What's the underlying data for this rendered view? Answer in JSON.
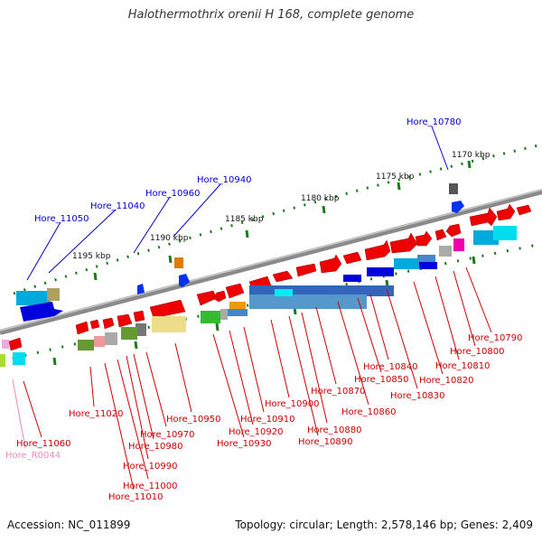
{
  "title": "Halothermothrix orenii H 168, complete genome",
  "accession": "Accession: NC_011899",
  "summary": "Topology: circular; Length: 2,578,146 bp; Genes: 2,409",
  "colors": {
    "backbone": "#8a8a8a",
    "tick_green": "#1c7a1c",
    "label_blue": "#0000cc",
    "label_red": "#cc0000",
    "label_pink": "#ee88bb"
  },
  "scale_labels": [
    "1170 kbp",
    "1175 kbp",
    "1180 kbp",
    "1185 kbp",
    "1190 kbp",
    "1195 kbp"
  ],
  "labels_top": [
    "Hore_10780",
    "Hore_10940",
    "Hore_10960",
    "Hore_11040",
    "Hore_11050"
  ],
  "labels_bottom": [
    "Hore_10790",
    "Hore_10800",
    "Hore_10810",
    "Hore_10820",
    "Hore_10830",
    "Hore_10840",
    "Hore_10850",
    "Hore_10860",
    "Hore_10870",
    "Hore_10880",
    "Hore_10890",
    "Hore_10900",
    "Hore_10910",
    "Hore_10920",
    "Hore_10930",
    "Hore_10950",
    "Hore_10970",
    "Hore_10980",
    "Hore_10990",
    "Hore_11000",
    "Hore_11010",
    "Hore_11020",
    "Hore_11060",
    "Hore_R0044"
  ]
}
